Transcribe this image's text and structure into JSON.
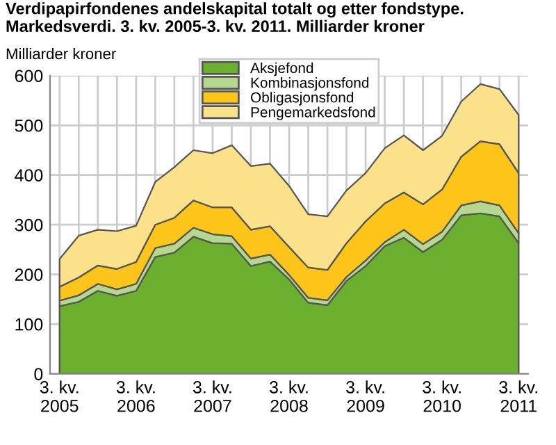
{
  "chart_data": {
    "type": "area",
    "stacked": true,
    "title": "Verdipapirfondenes andelskapital totalt og etter fondstype.\nMarkedsverdi. 3. kv. 2005-3. kv. 2011. Milliarder kroner",
    "ylabel": "Milliarder kroner",
    "categories": [
      "3. kv.\n2005",
      null,
      null,
      null,
      "3. kv.\n2006",
      null,
      null,
      null,
      "3. kv.\n2007",
      null,
      null,
      null,
      "3. kv.\n2008",
      null,
      null,
      null,
      "3. kv.\n2009",
      null,
      null,
      null,
      "3. kv.\n2010",
      null,
      null,
      null,
      "3. kv.\n2011"
    ],
    "series": [
      {
        "name": "Aksjefond",
        "color": "#6aaf2e",
        "values": [
          136,
          145,
          167,
          157,
          167,
          235,
          244,
          276,
          263,
          262,
          217,
          226,
          190,
          143,
          138,
          187,
          217,
          257,
          274,
          245,
          270,
          319,
          323,
          317,
          263
        ]
      },
      {
        "name": "Kombinasjonsfond",
        "color": "#b5d88f",
        "values": [
          11,
          13,
          14,
          13,
          14,
          18,
          18,
          18,
          18,
          15,
          15,
          14,
          9,
          10,
          10,
          8,
          11,
          8,
          16,
          16,
          16,
          20,
          24,
          22,
          20
        ]
      },
      {
        "name": "Obligasjonsfond",
        "color": "#fdc51a",
        "values": [
          28,
          36,
          37,
          41,
          44,
          47,
          52,
          55,
          54,
          58,
          58,
          57,
          56,
          61,
          61,
          68,
          79,
          78,
          75,
          80,
          85,
          98,
          121,
          123,
          121
        ]
      },
      {
        "name": "Pengemarkedsfond",
        "color": "#fbe18a",
        "values": [
          56,
          84,
          72,
          76,
          73,
          86,
          102,
          101,
          109,
          125,
          128,
          126,
          123,
          107,
          108,
          106,
          97,
          111,
          115,
          109,
          108,
          111,
          115,
          111,
          117
        ]
      }
    ],
    "ylim": [
      0,
      600
    ],
    "yticks": [
      0,
      100,
      200,
      300,
      400,
      500,
      600
    ],
    "grid": true,
    "legend": "top"
  }
}
